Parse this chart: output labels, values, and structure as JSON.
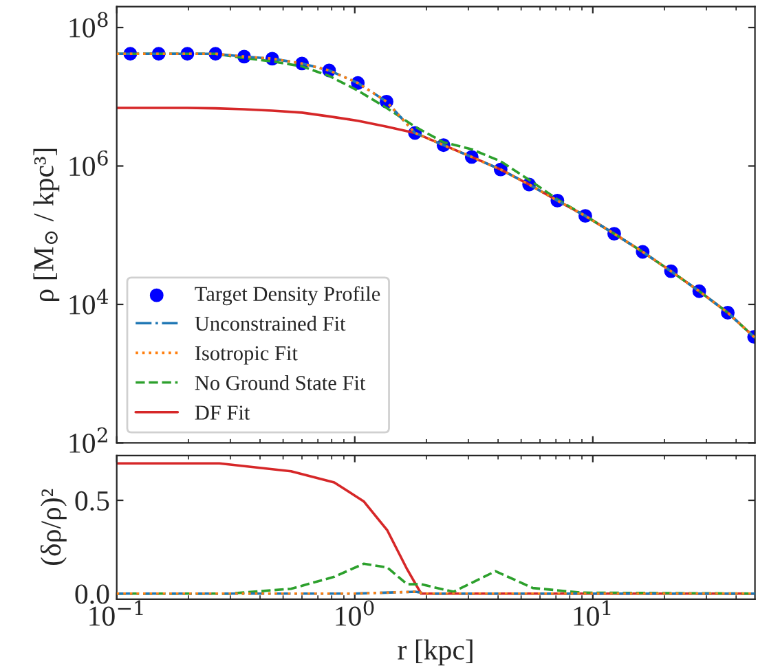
{
  "chart_data": [
    {
      "type": "line",
      "ylabel": "ρ [M$_{⊙}$ / kpc³]",
      "log": "xy",
      "xlim": [
        0.1,
        48
      ],
      "ylim": [
        100,
        200000000
      ],
      "xticks": [
        {
          "value": 0.1,
          "label": null
        },
        {
          "value": 1,
          "label": null
        },
        {
          "value": 10,
          "label": null
        }
      ],
      "yticks": [
        {
          "value": 100,
          "label": "10$^{2}$"
        },
        {
          "value": 10000,
          "label": "10$^{4}$"
        },
        {
          "value": 1000000,
          "label": "10$^{6}$"
        },
        {
          "value": 100000000,
          "label": "10$^{8}$"
        }
      ],
      "tick_labels": "y",
      "legend": "bottom left",
      "series": [
        {
          "name": "Target Density Profile",
          "type": "scatter",
          "marker": "circle",
          "color": "#0000ff",
          "x": [
            0.114,
            0.15,
            0.198,
            0.26,
            0.343,
            0.45,
            0.6,
            0.78,
            1.03,
            1.36,
            1.79,
            2.36,
            3.1,
            4.1,
            5.4,
            7.1,
            9.3,
            12.3,
            16.2,
            21.3,
            28.0,
            36.9,
            47.6
          ],
          "values": [
            41700000,
            41700000,
            41700000,
            41700000,
            38000000,
            35500000,
            30200000,
            24000000,
            15800000,
            8500000,
            3000000,
            2000000,
            1350000,
            890000,
            540000,
            316000,
            190000,
            105000,
            57500,
            30200,
            15500,
            7600,
            3400
          ]
        },
        {
          "name": "Unconstrained Fit",
          "line_style": "dashdot",
          "color": "#1f77b4",
          "x": [
            0.1,
            0.114,
            0.15,
            0.198,
            0.26,
            0.343,
            0.45,
            0.6,
            0.78,
            1.03,
            1.36,
            1.79,
            2.36,
            3.1,
            4.1,
            5.4,
            7.1,
            9.3,
            12.3,
            16.2,
            21.3,
            28.0,
            36.9,
            48
          ],
          "values": [
            41700000,
            41700000,
            41700000,
            41700000,
            41700000,
            38000000,
            35500000,
            30200000,
            24000000,
            15800000,
            8500000,
            3000000,
            2000000,
            1350000,
            890000,
            540000,
            316000,
            190000,
            105000,
            57500,
            30200,
            15500,
            7600,
            3300
          ]
        },
        {
          "name": "Isotropic Fit",
          "line_style": "dotted",
          "color": "#ff7f0e",
          "x": [
            0.1,
            0.114,
            0.15,
            0.198,
            0.26,
            0.343,
            0.45,
            0.6,
            0.78,
            1.03,
            1.36,
            1.79,
            2.36,
            3.1,
            4.1,
            5.4,
            7.1,
            9.3,
            12.3,
            16.2,
            21.3,
            28.0,
            36.9,
            48
          ],
          "values": [
            41700000,
            41700000,
            41700000,
            41700000,
            41700000,
            38000000,
            35500000,
            30200000,
            24000000,
            15800000,
            8500000,
            3000000,
            2000000,
            1350000,
            890000,
            540000,
            316000,
            190000,
            105000,
            57500,
            30200,
            15500,
            7600,
            3300
          ]
        },
        {
          "name": "No Ground State Fit",
          "line_style": "dashed",
          "color": "#2ca02c",
          "x": [
            0.1,
            0.114,
            0.15,
            0.198,
            0.26,
            0.343,
            0.45,
            0.6,
            0.78,
            1.03,
            1.36,
            1.79,
            2.36,
            3.1,
            4.1,
            5.4,
            7.1,
            9.3,
            12.3,
            16.2,
            21.3,
            28.0,
            36.9,
            48
          ],
          "values": [
            41700000,
            41700000,
            41700000,
            41700000,
            41700000,
            36300000,
            32400000,
            27500000,
            20000000,
            12300000,
            6900000,
            3700000,
            2200000,
            1740000,
            1170000,
            630000,
            330000,
            190000,
            105000,
            57500,
            30200,
            15500,
            7600,
            3300
          ]
        },
        {
          "name": "DF Fit",
          "line_style": "solid",
          "color": "#d62728",
          "x": [
            0.1,
            0.15,
            0.198,
            0.26,
            0.343,
            0.45,
            0.6,
            0.78,
            1.03,
            1.36,
            1.79,
            2.36,
            3.1,
            4.1,
            5.4,
            7.1,
            9.3,
            12.3,
            16.2,
            21.3,
            28.0,
            36.9,
            48
          ],
          "values": [
            6900000,
            6900000,
            6900000,
            6800000,
            6600000,
            6300000,
            5900000,
            5200000,
            4500000,
            3700000,
            3000000,
            2000000,
            1350000,
            890000,
            540000,
            316000,
            190000,
            105000,
            57500,
            30200,
            15500,
            7600,
            3300
          ]
        }
      ]
    },
    {
      "type": "line",
      "xlabel": "r [kpc]",
      "ylabel": "(δρ/ρ)²",
      "log": "x",
      "xlim": [
        0.1,
        48
      ],
      "ylim": [
        -0.03,
        0.74
      ],
      "xticks": [
        {
          "value": 0.1,
          "label": "10$^{−1}$"
        },
        {
          "value": 1,
          "label": "10$^{0}$"
        },
        {
          "value": 10,
          "label": "10$^{1}$"
        }
      ],
      "yticks": [
        {
          "value": 0,
          "label": "0.0"
        },
        0.5
      ],
      "series": [
        {
          "line_style": "dashdot",
          "color": "#1f77b4",
          "x": [
            0.1,
            1.0,
            1.8,
            2.0,
            48
          ],
          "values": [
            0,
            0,
            0.01,
            0,
            0
          ]
        },
        {
          "line_style": "dotted",
          "color": "#ff7f0e",
          "x": [
            0.1,
            1.0,
            1.8,
            2.0,
            48
          ],
          "values": [
            0,
            0,
            0.01,
            0,
            0
          ]
        },
        {
          "line_style": "dashed",
          "color": "#2ca02c",
          "x": [
            0.1,
            0.3,
            0.54,
            0.82,
            1.09,
            1.37,
            1.66,
            1.9,
            2.6,
            3.9,
            5.6,
            9.0,
            48
          ],
          "values": [
            0,
            0,
            0.026,
            0.09,
            0.16,
            0.14,
            0.05,
            0.05,
            0.01,
            0.12,
            0.03,
            0.005,
            0
          ]
        },
        {
          "line_style": "solid",
          "color": "#d62728",
          "x": [
            0.1,
            0.27,
            0.54,
            0.82,
            1.09,
            1.37,
            1.66,
            1.9,
            48
          ],
          "values": [
            0.698,
            0.698,
            0.656,
            0.596,
            0.495,
            0.339,
            0.13,
            0,
            0
          ]
        }
      ]
    }
  ]
}
